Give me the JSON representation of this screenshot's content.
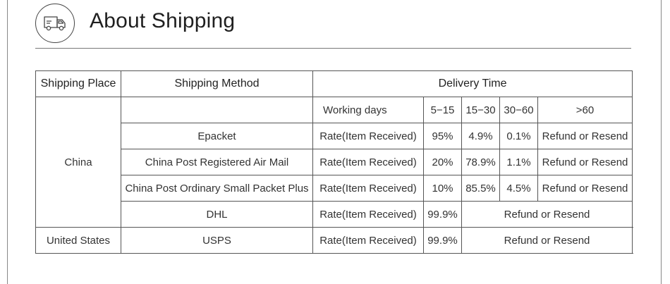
{
  "header": {
    "icon": "truck-icon",
    "title": "About Shipping"
  },
  "table": {
    "headers": {
      "place": "Shipping Place",
      "method": "Shipping Method",
      "delivery": "Delivery Time"
    },
    "subheader": {
      "label": "Working days",
      "ranges": [
        "5−15",
        "15−30",
        "30−60",
        ">60"
      ]
    },
    "china": {
      "place": "China",
      "rows": [
        {
          "method": "Epacket",
          "label": "Rate(Item Received)",
          "values": [
            "95%",
            "4.9%",
            "0.1%",
            "Refund or Resend"
          ]
        },
        {
          "method": "China Post Registered Air Mail",
          "label": "Rate(Item Received)",
          "values": [
            "20%",
            "78.9%",
            "1.1%",
            "Refund or Resend"
          ]
        },
        {
          "method": "China Post Ordinary Small Packet Plus",
          "label": "Rate(Item Received)",
          "values": [
            "10%",
            "85.5%",
            "4.5%",
            "Refund or Resend"
          ]
        },
        {
          "method": "DHL",
          "label": "Rate(Item Received)",
          "value": "99.9%",
          "rest": "Refund or Resend"
        }
      ]
    },
    "us": {
      "place": "United States",
      "method": "USPS",
      "label": "Rate(Item Received)",
      "value": "99.9%",
      "rest": "Refund or Resend"
    }
  }
}
